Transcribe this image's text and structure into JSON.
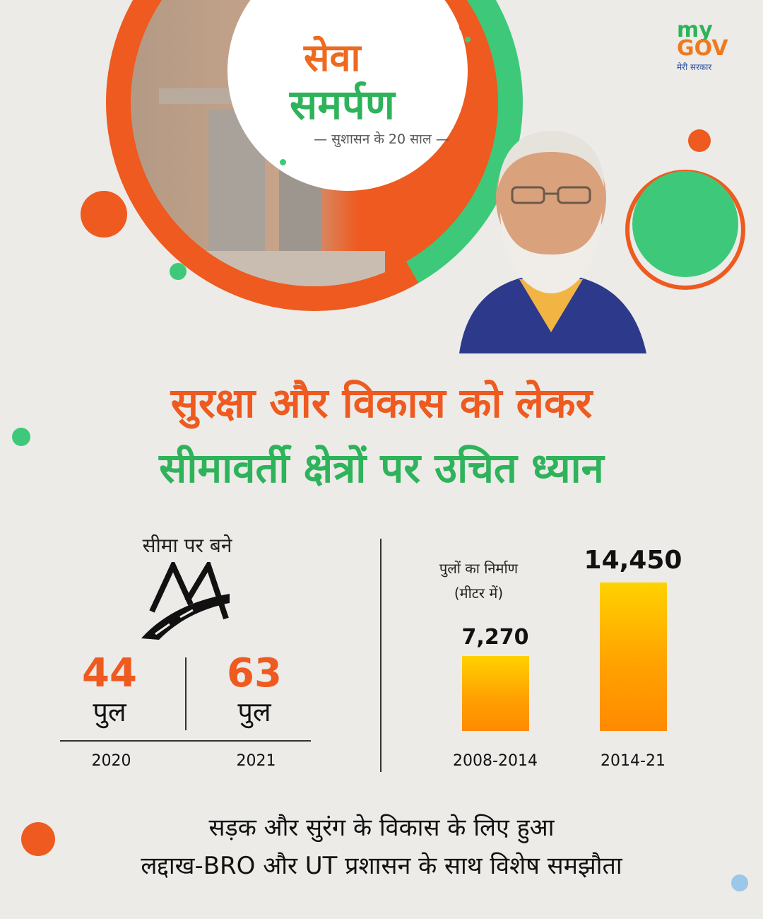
{
  "brand": {
    "seva": "सेवा",
    "samarpan": "समर्पण",
    "tagline": "— सुशासन के 20 साल —",
    "mygov_my": "my",
    "mygov_gov": "GOV",
    "mygov_sub": "मेरी सरकार"
  },
  "headline": {
    "line1": "सुरक्षा और विकास को लेकर",
    "line2": "सीमावर्ती क्षेत्रों पर उचित ध्यान"
  },
  "left_panel": {
    "title": "सीमा पर बने",
    "stats": [
      {
        "value": "44",
        "unit": "पुल",
        "year": "2020"
      },
      {
        "value": "63",
        "unit": "पुल",
        "year": "2021"
      }
    ]
  },
  "chart_data": {
    "type": "bar",
    "title": "पुलों का निर्माण",
    "subtitle": "(मीटर में)",
    "categories": [
      "2008-2014",
      "2014-21"
    ],
    "values": [
      7270,
      14450
    ],
    "value_labels": [
      "7,270",
      "14,450"
    ],
    "xlabel": "",
    "ylabel": "",
    "ylim": [
      0,
      14450
    ],
    "grid": false
  },
  "footer": {
    "line1": "सड़क और सुरंग के विकास के लिए हुआ",
    "line2": "लद्दाख-BRO और UT प्रशासन के साथ विशेष समझौता"
  },
  "colors": {
    "orange": "#ee5a1f",
    "green": "#2eb35a",
    "bar_top": "#ffd200",
    "bar_bottom": "#ff8a00"
  }
}
